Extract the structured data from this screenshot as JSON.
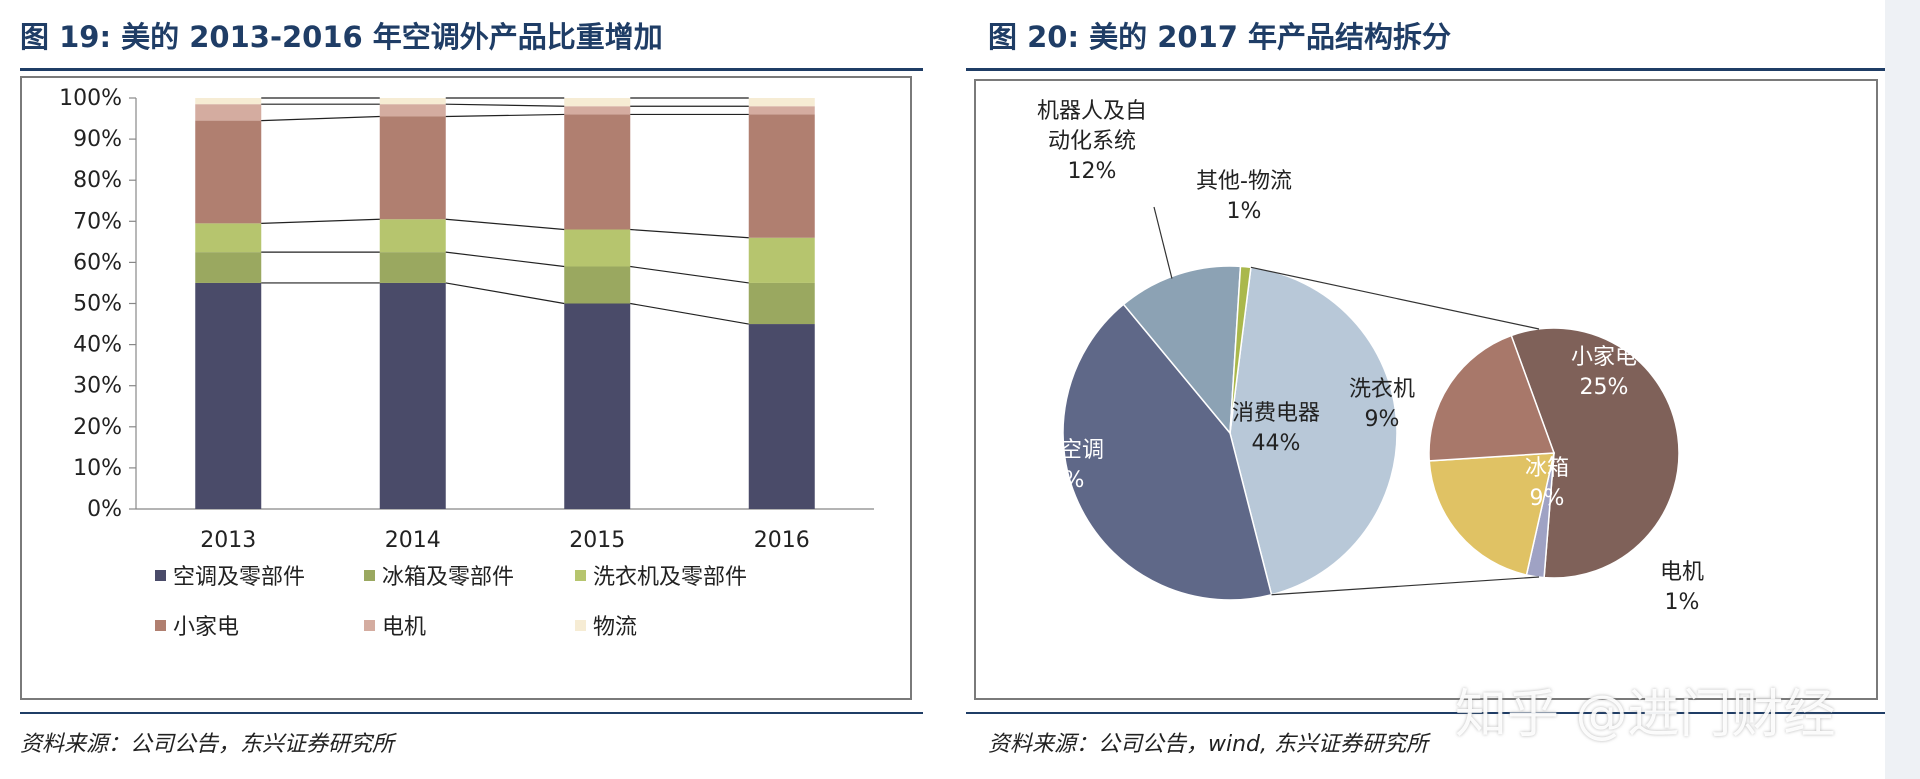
{
  "left": {
    "title": "图 19: 美的 2013-2016 年空调外产品比重增加",
    "source": "资料来源：公司公告，东兴证券研究所"
  },
  "right": {
    "title": "图 20: 美的 2017 年产品结构拆分",
    "source": "资料来源：公司公告，wind, 东兴证券研究所"
  },
  "watermark": "知乎 @进门财经",
  "colors": {
    "title": "#1f3d66",
    "air_conditioner": "#4a4b69",
    "fridge": "#9aa860",
    "washer": "#b6c56e",
    "small_appliance": "#b07f70",
    "motor": "#d4aca0",
    "logistics": "#f6ecd4",
    "hvac": "#5f6888",
    "consumer": "#b8c8d8",
    "robotics": "#8ca2b4",
    "other": "#aab84c",
    "sub_small": "#7f6159",
    "sub_washer": "#a8786a",
    "sub_fridge": "#e0c264",
    "sub_motor": "#9fa2c4"
  },
  "chart_data": [
    {
      "type": "bar",
      "stacked": true,
      "categories": [
        "2013",
        "2014",
        "2015",
        "2016"
      ],
      "series": [
        {
          "name": "空调及零部件",
          "values": [
            55,
            55,
            50,
            45
          ]
        },
        {
          "name": "冰箱及零部件",
          "values": [
            7.5,
            7.5,
            9,
            10
          ]
        },
        {
          "name": "洗衣机及零部件",
          "values": [
            7,
            8,
            9,
            11
          ]
        },
        {
          "name": "小家电",
          "values": [
            25,
            25,
            28,
            30
          ]
        },
        {
          "name": "电机",
          "values": [
            4,
            3,
            2,
            2
          ]
        },
        {
          "name": "物流",
          "values": [
            1.5,
            1.5,
            2,
            2
          ]
        }
      ],
      "ylim": [
        0,
        100
      ],
      "yticks": [
        "0%",
        "10%",
        "20%",
        "30%",
        "40%",
        "50%",
        "60%",
        "70%",
        "80%",
        "90%",
        "100%"
      ],
      "legend_position": "bottom"
    },
    {
      "type": "pie",
      "slices": [
        {
          "label": "暖通空调",
          "value": 43,
          "text": "43%"
        },
        {
          "label": "消费电器",
          "value": 44,
          "text": "44%"
        },
        {
          "label": "机器人及自动化系统",
          "label_lines": [
            "机器人及自",
            "动化系统"
          ],
          "value": 12,
          "text": "12%"
        },
        {
          "label": "其他-物流",
          "value": 1,
          "text": "1%"
        }
      ],
      "breakout_of": "消费电器",
      "breakout": [
        {
          "label": "小家电",
          "value": 25,
          "text": "25%"
        },
        {
          "label": "电机",
          "value": 1,
          "text": "1%"
        },
        {
          "label": "冰箱",
          "value": 9,
          "text": "9%"
        },
        {
          "label": "洗衣机",
          "value": 9,
          "text": "9%"
        }
      ]
    }
  ]
}
